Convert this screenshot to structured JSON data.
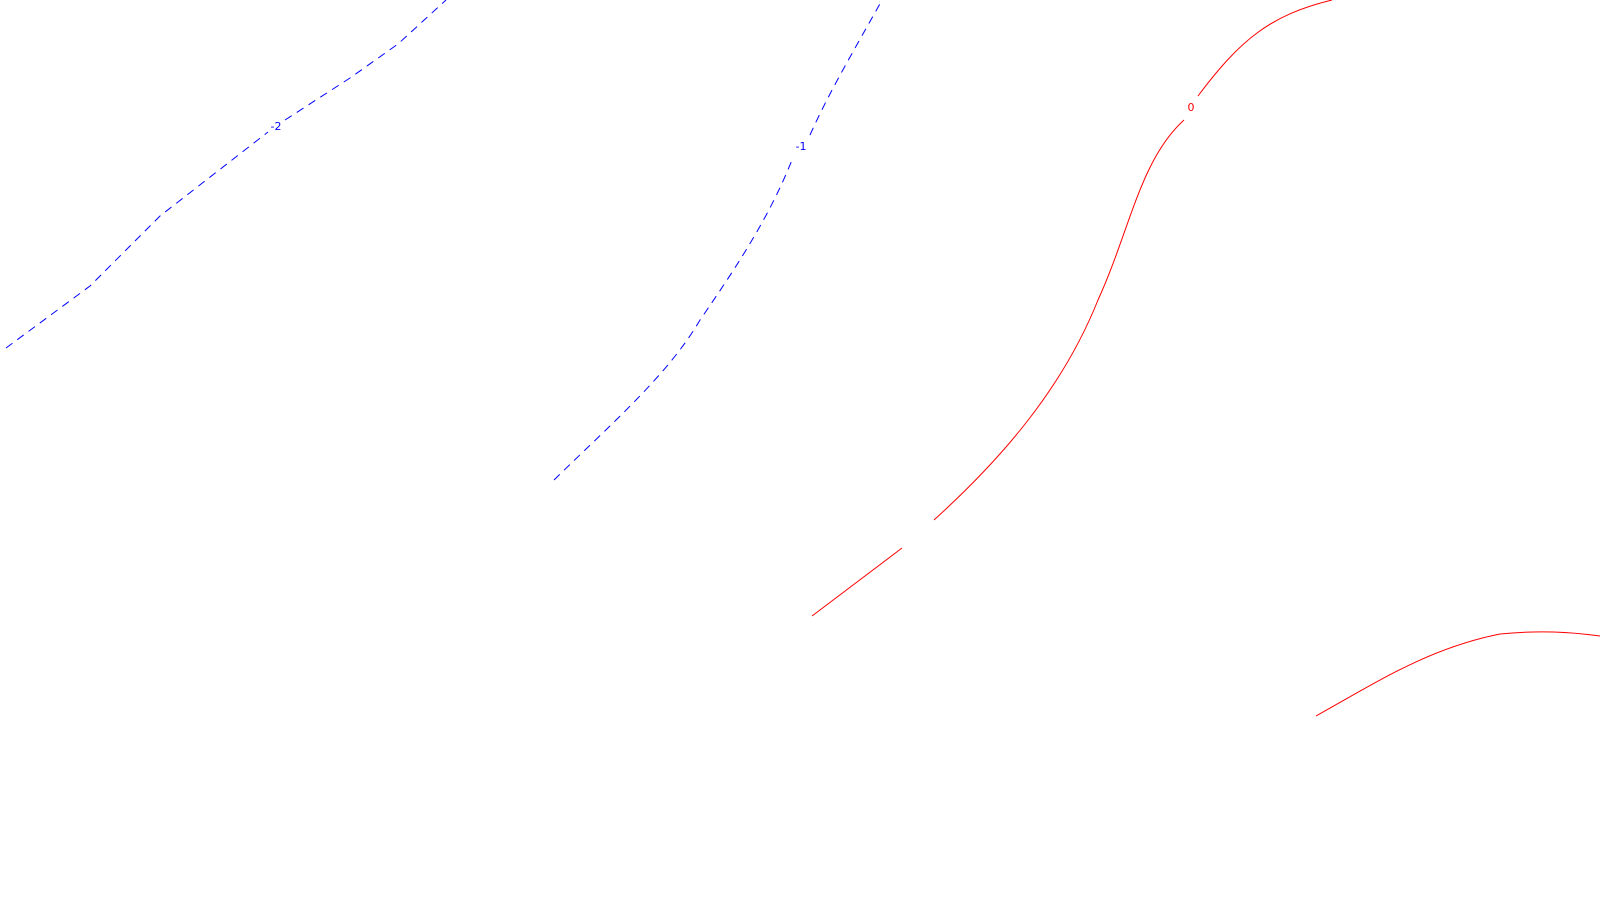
{
  "map": {
    "colors": {
      "background": "#ffffff",
      "negative_contour": "#0000ff",
      "zero_contour": "#ff0000"
    },
    "contours": [
      {
        "id": "contour-neg2",
        "label": "-2",
        "color": "#0000ff",
        "style": "dashed"
      },
      {
        "id": "contour-neg1",
        "label": "-1",
        "color": "#0000ff",
        "style": "dashed"
      },
      {
        "id": "contour-0-main",
        "label": "0",
        "color": "#ff0000",
        "style": "solid"
      },
      {
        "id": "contour-0-lower",
        "label": "",
        "color": "#ff0000",
        "style": "solid"
      }
    ]
  }
}
